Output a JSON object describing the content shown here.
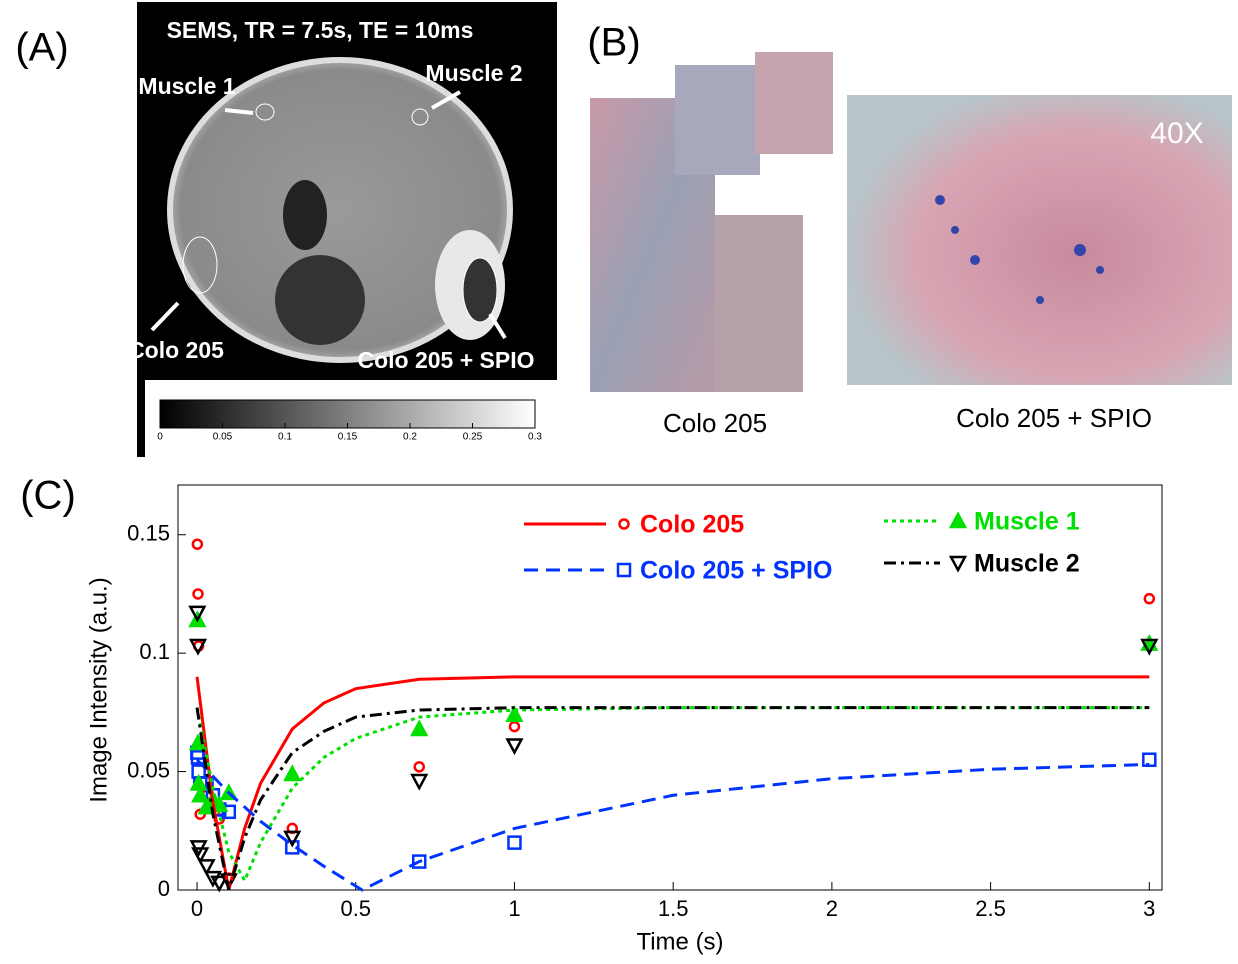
{
  "panel_labels": [
    "(A)",
    "(B)",
    "(C)"
  ],
  "panel_a": {
    "title": "SEMS, TR = 7.5s, TE = 10ms",
    "regions": [
      "Muscle 1",
      "Muscle 2",
      "Colo 205",
      "Colo 205 + SPIO"
    ],
    "colorbar": {
      "lim": [
        0,
        0.3
      ],
      "ticks": [
        0,
        0.05,
        0.1,
        0.15,
        0.2,
        0.25,
        0.3
      ]
    }
  },
  "panel_b": {
    "magnification": "40X",
    "captions": [
      "Colo 205",
      "Colo 205 + SPIO"
    ]
  },
  "chart_data": {
    "type": "scatter-fit",
    "xlabel": "Time (s)",
    "ylabel": "Image Intensity (a.u.)",
    "xlim": [
      -0.06,
      3.04
    ],
    "ylim": [
      0,
      0.171
    ],
    "xticks": [
      0,
      0.5,
      1,
      1.5,
      2,
      2.5,
      3
    ],
    "yticks": [
      0,
      0.05,
      0.1,
      0.15
    ],
    "point_x": [
      0.001,
      0.003,
      0.005,
      0.01,
      0.03,
      0.05,
      0.07,
      0.1,
      0.3,
      0.7,
      1,
      3
    ],
    "series": [
      {
        "name": "Colo 205",
        "color": "#ff0000",
        "line_style": "solid",
        "marker": "circle",
        "fit_x": [
          0,
          0.05,
          0.1,
          0.15,
          0.2,
          0.3,
          0.4,
          0.5,
          0.7,
          1,
          1.5,
          2,
          3
        ],
        "fit_values": [
          0.09,
          0.037,
          0,
          0.026,
          0.045,
          0.068,
          0.079,
          0.085,
          0.089,
          0.09,
          0.09,
          0.09,
          0.09
        ],
        "point_values": [
          0.146,
          0.125,
          0.103,
          0.032,
          0.04,
          0.036,
          0.03,
          0.005,
          0.026,
          0.052,
          0.069,
          0.123
        ]
      },
      {
        "name": "Colo 205 + SPIO",
        "color": "#0033ff",
        "line_style": "dashed",
        "marker": "square",
        "fit_x": [
          0,
          0.05,
          0.1,
          0.2,
          0.3,
          0.4,
          0.52,
          0.7,
          1,
          1.5,
          2,
          2.5,
          3
        ],
        "fit_values": [
          0.055,
          0.048,
          0.041,
          0.029,
          0.019,
          0.01,
          0,
          0.012,
          0.026,
          0.04,
          0.047,
          0.051,
          0.053
        ],
        "point_values": [
          0.058,
          0.056,
          0.05,
          0.045,
          0.045,
          0.04,
          0.034,
          0.033,
          0.018,
          0.012,
          0.02,
          0.055
        ]
      },
      {
        "name": "Muscle 1",
        "color": "#00e000",
        "line_style": "dotted",
        "marker": "triangle-up",
        "fit_x": [
          0,
          0.05,
          0.1,
          0.15,
          0.2,
          0.3,
          0.4,
          0.5,
          0.7,
          1,
          1.5,
          2,
          3
        ],
        "fit_values": [
          0.077,
          0.043,
          0.016,
          0.004,
          0.02,
          0.043,
          0.056,
          0.064,
          0.073,
          0.076,
          0.077,
          0.077,
          0.077
        ],
        "point_values": [
          0.114,
          0.062,
          0.045,
          0.04,
          0.035,
          0.038,
          0.036,
          0.041,
          0.049,
          0.068,
          0.074,
          0.104
        ]
      },
      {
        "name": "Muscle 2",
        "color": "#000000",
        "line_style": "dashdot",
        "marker": "triangle-down",
        "fit_x": [
          0,
          0.05,
          0.1,
          0.15,
          0.2,
          0.3,
          0.4,
          0.5,
          0.7,
          1,
          1.5,
          2,
          3
        ],
        "fit_values": [
          0.077,
          0.032,
          0,
          0.022,
          0.038,
          0.058,
          0.067,
          0.073,
          0.076,
          0.077,
          0.077,
          0.077,
          0.077
        ],
        "point_values": [
          0.117,
          0.103,
          0.018,
          0.015,
          0.01,
          0.005,
          0.003,
          0.004,
          0.022,
          0.046,
          0.061,
          0.103
        ]
      }
    ]
  }
}
